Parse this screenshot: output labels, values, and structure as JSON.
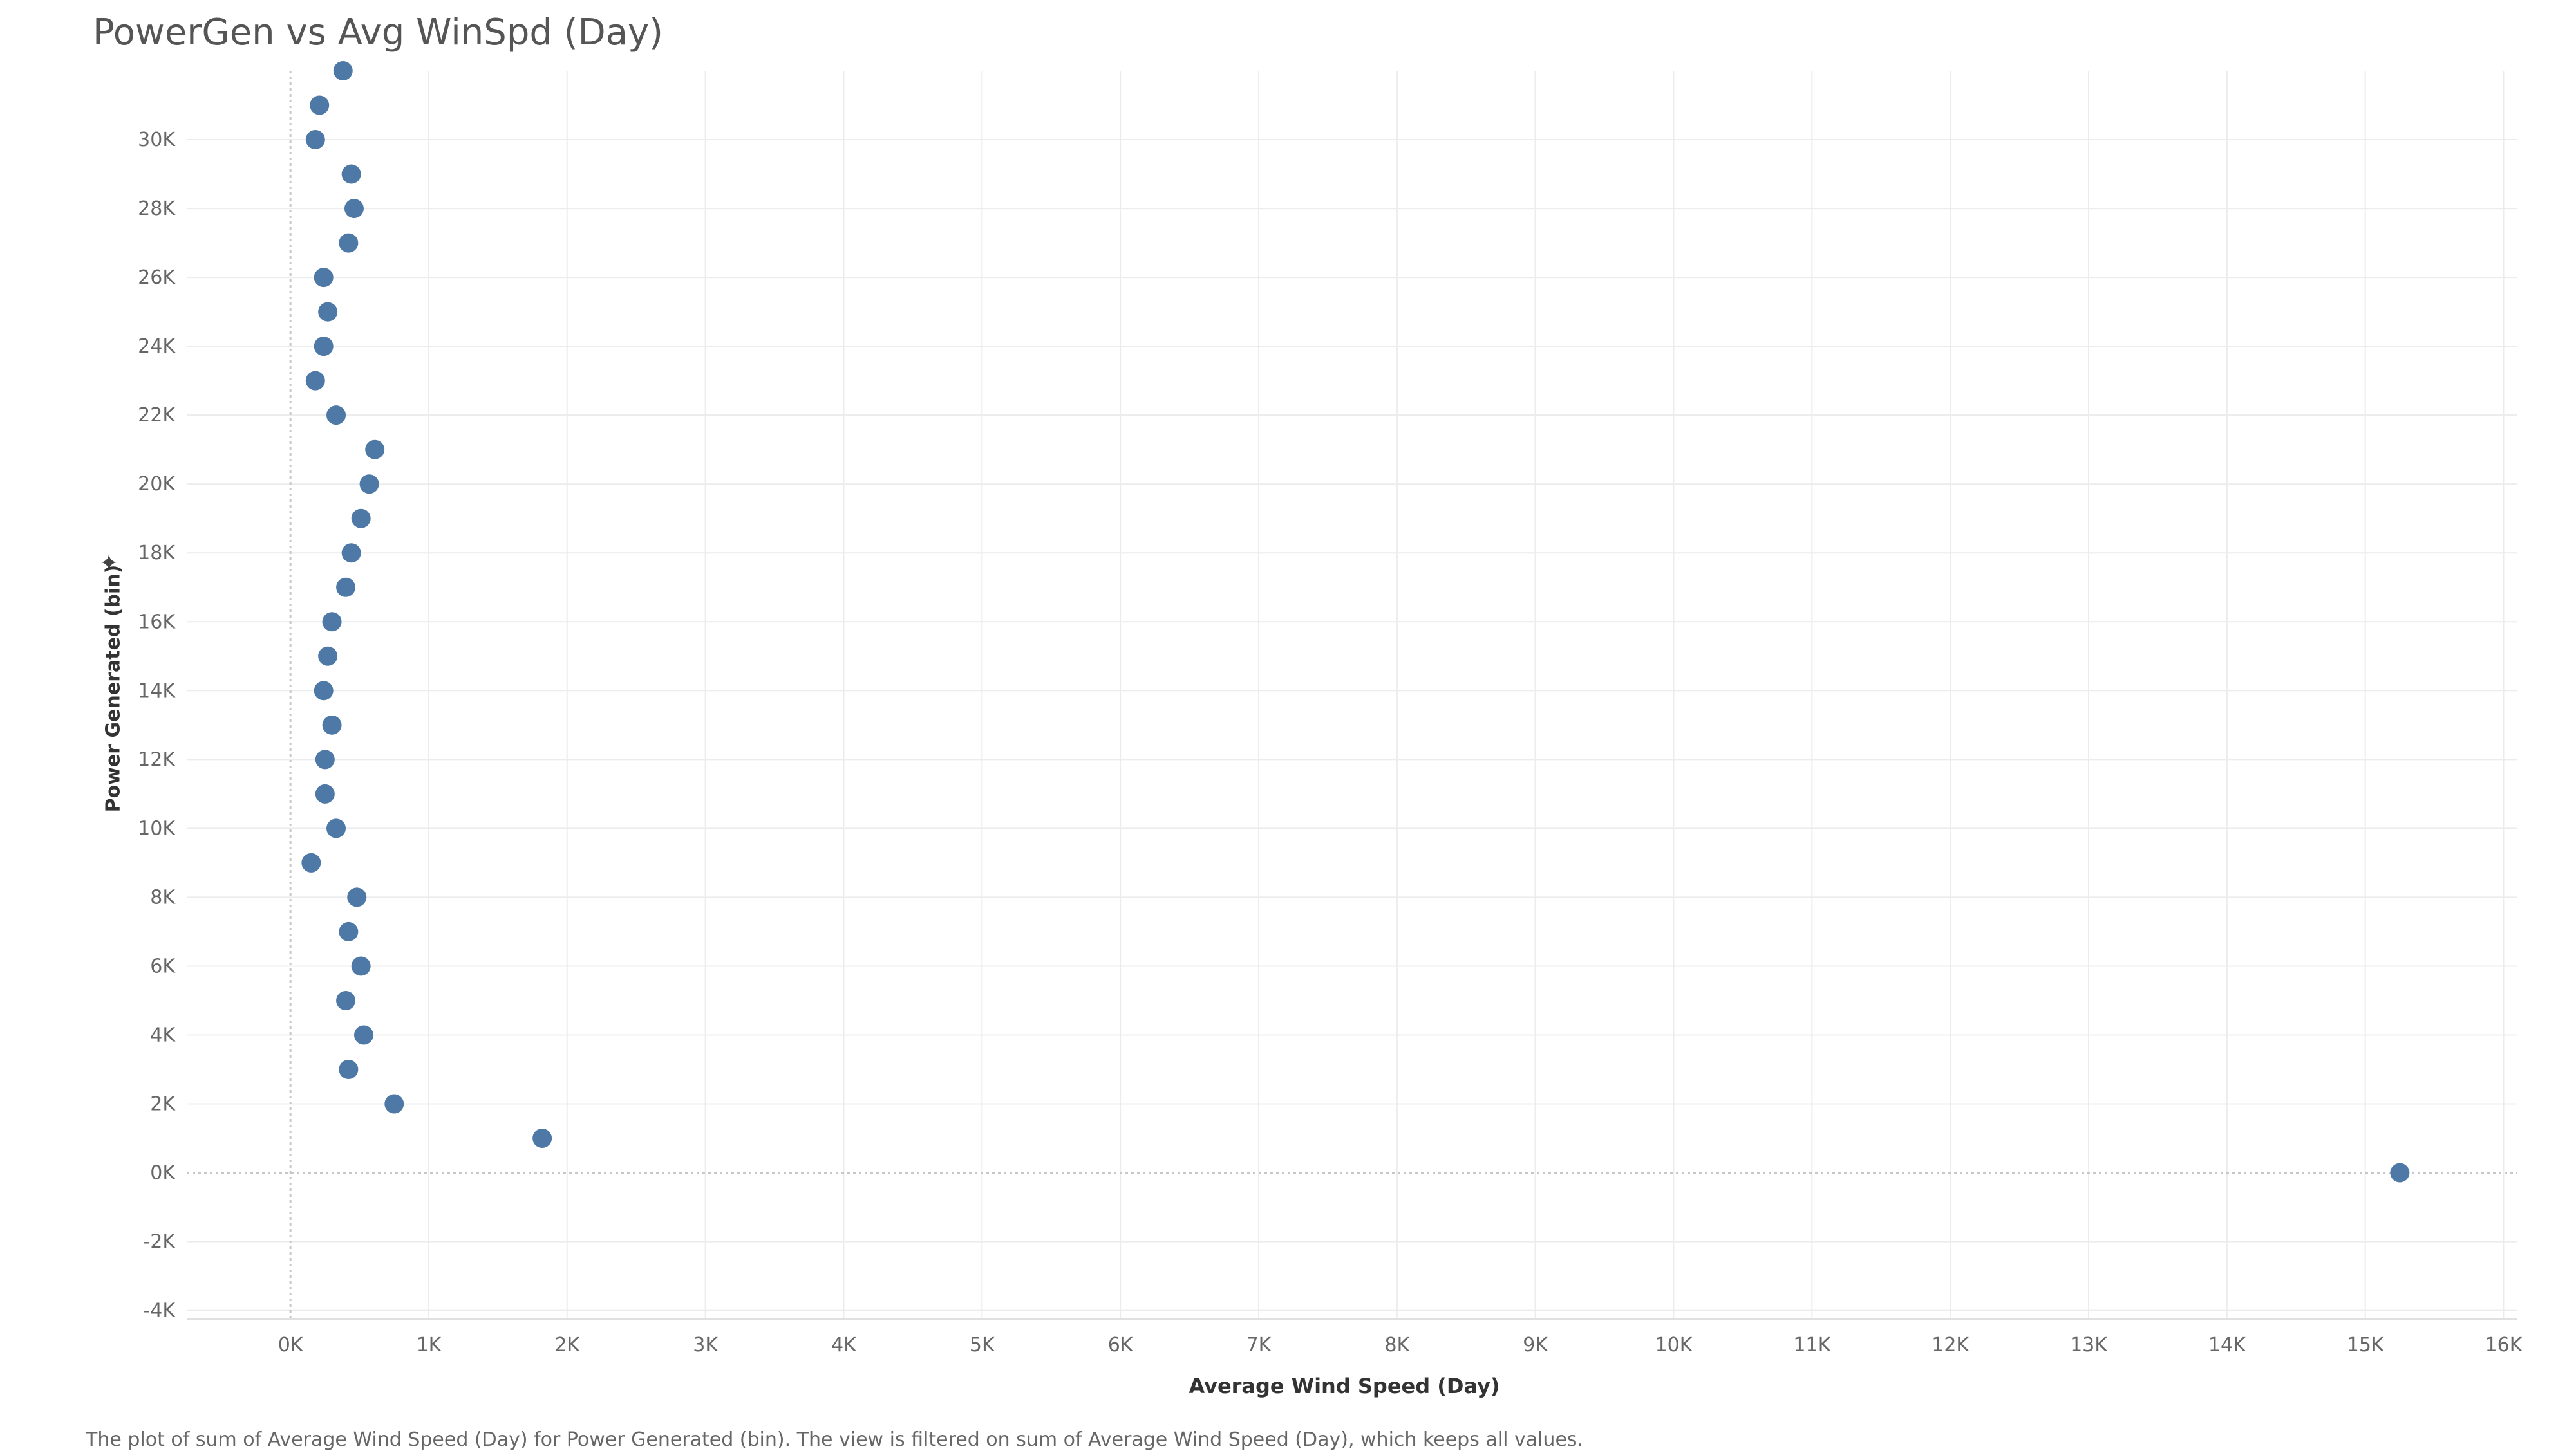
{
  "chart_data": {
    "type": "scatter",
    "title": "PowerGen vs Avg WinSpd (Day)",
    "xlabel": "Average Wind Speed (Day)",
    "ylabel": "Power Generated (bin)",
    "xlim": [
      -750,
      16100
    ],
    "ylim": [
      -4250,
      32000
    ],
    "x_ticks": [
      0,
      1000,
      2000,
      3000,
      4000,
      5000,
      6000,
      7000,
      8000,
      9000,
      10000,
      11000,
      12000,
      13000,
      14000,
      15000,
      16000
    ],
    "x_tick_labels": [
      "0K",
      "1K",
      "2K",
      "3K",
      "4K",
      "5K",
      "6K",
      "7K",
      "8K",
      "9K",
      "10K",
      "11K",
      "12K",
      "13K",
      "14K",
      "15K",
      "16K"
    ],
    "y_ticks": [
      -4000,
      -2000,
      0,
      2000,
      4000,
      6000,
      8000,
      10000,
      12000,
      14000,
      16000,
      18000,
      20000,
      22000,
      24000,
      26000,
      28000,
      30000
    ],
    "y_tick_labels": [
      "-4K",
      "-2K",
      "0K",
      "2K",
      "4K",
      "6K",
      "8K",
      "10K",
      "12K",
      "14K",
      "16K",
      "18K",
      "20K",
      "22K",
      "24K",
      "26K",
      "28K",
      "30K"
    ],
    "grid": true,
    "marker_color": "#4e79a7",
    "points": [
      {
        "x": 15250,
        "y": 0
      },
      {
        "x": 1820,
        "y": 1000
      },
      {
        "x": 750,
        "y": 2000
      },
      {
        "x": 420,
        "y": 3000
      },
      {
        "x": 530,
        "y": 4000
      },
      {
        "x": 400,
        "y": 5000
      },
      {
        "x": 510,
        "y": 6000
      },
      {
        "x": 420,
        "y": 7000
      },
      {
        "x": 480,
        "y": 8000
      },
      {
        "x": 150,
        "y": 9000
      },
      {
        "x": 330,
        "y": 10000
      },
      {
        "x": 250,
        "y": 11000
      },
      {
        "x": 250,
        "y": 12000
      },
      {
        "x": 300,
        "y": 13000
      },
      {
        "x": 240,
        "y": 14000
      },
      {
        "x": 270,
        "y": 15000
      },
      {
        "x": 300,
        "y": 16000
      },
      {
        "x": 400,
        "y": 17000
      },
      {
        "x": 440,
        "y": 18000
      },
      {
        "x": 510,
        "y": 19000
      },
      {
        "x": 570,
        "y": 20000
      },
      {
        "x": 610,
        "y": 21000
      },
      {
        "x": 330,
        "y": 22000
      },
      {
        "x": 180,
        "y": 23000
      },
      {
        "x": 240,
        "y": 24000
      },
      {
        "x": 270,
        "y": 25000
      },
      {
        "x": 240,
        "y": 26000
      },
      {
        "x": 420,
        "y": 27000
      },
      {
        "x": 460,
        "y": 28000
      },
      {
        "x": 440,
        "y": 29000
      },
      {
        "x": 180,
        "y": 30000
      },
      {
        "x": 210,
        "y": 31000
      },
      {
        "x": 380,
        "y": 32000
      }
    ]
  },
  "footnote": "The plot of sum of Average Wind Speed (Day) for Power Generated (bin). The view is filtered on sum of Average Wind Speed (Day), which keeps all values.",
  "y_axis_pin_icon": "pin-icon"
}
